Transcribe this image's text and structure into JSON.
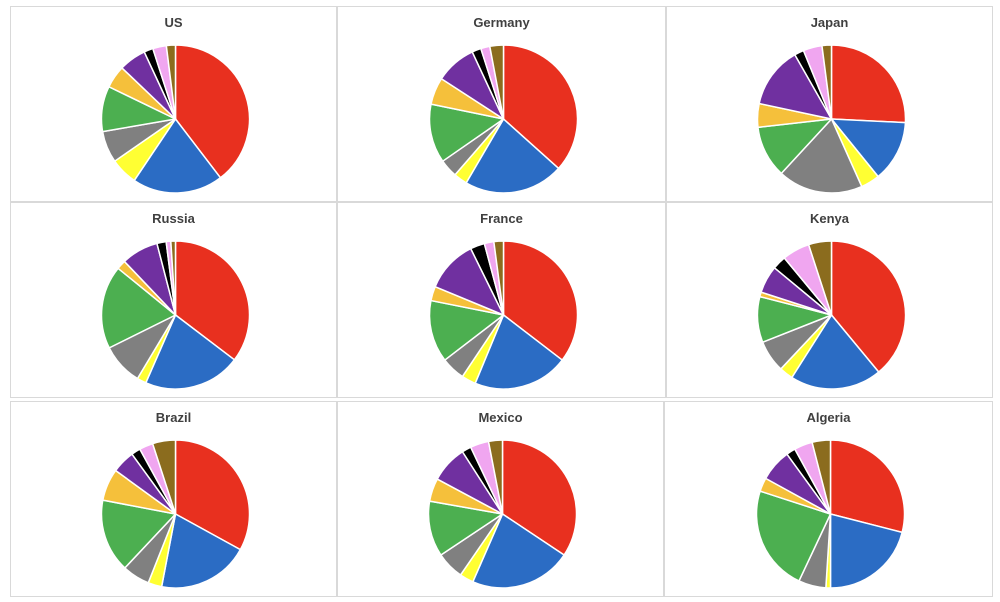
{
  "palette": [
    "#e8301f",
    "#2b6cc4",
    "#ffff33",
    "#808080",
    "#4caf50",
    "#f5c03b",
    "#7030a0",
    "#000000",
    "#f0a6f0",
    "#8b6c1e"
  ],
  "chart_data": [
    {
      "type": "pie",
      "title": "US",
      "values": [
        40,
        20,
        6,
        7,
        10,
        5,
        6,
        2,
        3,
        2
      ]
    },
    {
      "type": "pie",
      "title": "Germany",
      "values": [
        37,
        22,
        3,
        4,
        13,
        6,
        9,
        2,
        2,
        3
      ]
    },
    {
      "type": "pie",
      "title": "Japan",
      "values": [
        25,
        13,
        4,
        18,
        11,
        5,
        13,
        2,
        4,
        2
      ]
    },
    {
      "type": "pie",
      "title": "Russia",
      "values": [
        35,
        21,
        2,
        9,
        18,
        2,
        8,
        2,
        1,
        1
      ]
    },
    {
      "type": "pie",
      "title": "France",
      "values": [
        34,
        20,
        3,
        5,
        13,
        3,
        11,
        3,
        2,
        2
      ]
    },
    {
      "type": "pie",
      "title": "Kenya",
      "values": [
        39,
        20,
        3,
        7,
        10,
        1,
        6,
        3,
        6,
        5
      ]
    },
    {
      "type": "pie",
      "title": "Brazil",
      "values": [
        33,
        20,
        3,
        6,
        16,
        7,
        5,
        2,
        3,
        5
      ]
    },
    {
      "type": "pie",
      "title": "Mexico",
      "values": [
        34,
        22,
        3,
        6,
        12,
        5,
        8,
        2,
        4,
        3
      ]
    },
    {
      "type": "pie",
      "title": "Algeria",
      "values": [
        29,
        21,
        1,
        6,
        23,
        3,
        7,
        2,
        4,
        4
      ]
    }
  ]
}
